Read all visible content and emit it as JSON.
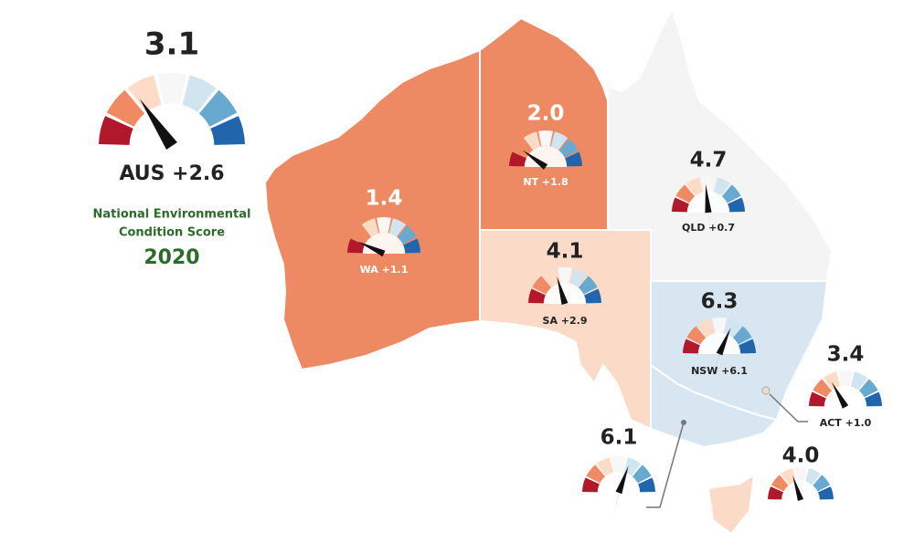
{
  "national": {
    "score": 3.1,
    "label": "AUS +2.6",
    "subtitle_lines": [
      "National Environmental",
      "Condition Score"
    ],
    "year": "2020"
  },
  "gauge_range": [
    0,
    10
  ],
  "gauge_colors": [
    "#b2182b",
    "#ef8a62",
    "#fddbc7",
    "#f7f7f7",
    "#d1e5f0",
    "#67a9cf",
    "#2166ac"
  ],
  "regions": [
    {
      "score": 1.4,
      "label": "WA +1.1",
      "color": "#ee8a63"
    },
    {
      "score": {
        "value": 2,
        "label": "2.0"
      },
      "label": "NT +1.8",
      "color": "#ee8a63"
    },
    {
      "score": 4.7,
      "label": "QLD +0.7",
      "color": "#f4f4f4"
    },
    {
      "score": 4.1,
      "label": "SA +2.9",
      "color": "#fbdac8"
    },
    {
      "score": 6.3,
      "label": "NSW +6.1",
      "color": "#d8e6f1"
    },
    {
      "score": 3.4,
      "label": "ACT +1.0",
      "color": "#fbdac8"
    },
    {
      "score": 6.1,
      "color": "#d8e6f1"
    },
    {
      "score": {
        "value": 4,
        "label": "4.0"
      },
      "color": "#fbdac8"
    }
  ]
}
